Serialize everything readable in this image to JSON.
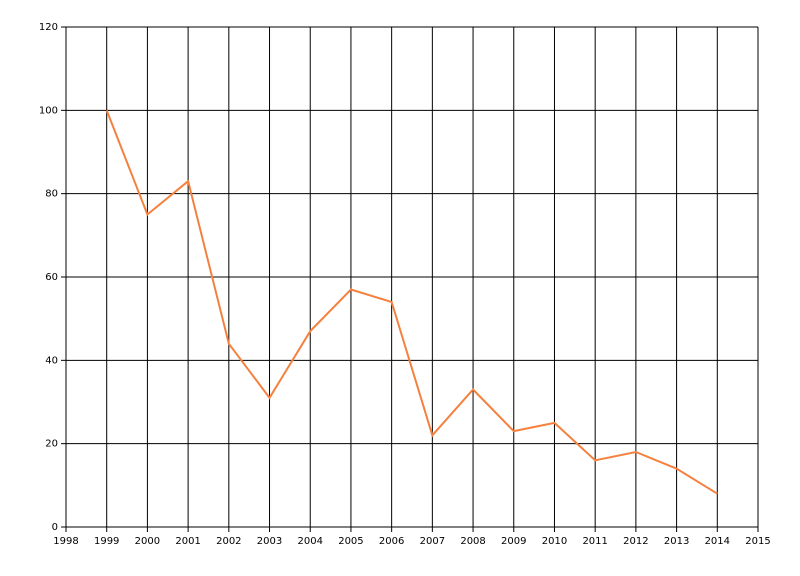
{
  "chart_data": {
    "type": "line",
    "x": [
      1999,
      2000,
      2001,
      2002,
      2003,
      2004,
      2005,
      2006,
      2007,
      2008,
      2009,
      2010,
      2011,
      2012,
      2013,
      2014
    ],
    "series": [
      {
        "color": "#f5813f",
        "values": [
          100,
          75,
          83,
          44,
          31,
          47,
          57,
          54,
          22,
          33,
          23,
          25,
          16,
          18,
          14,
          8
        ]
      }
    ],
    "xlim": [
      1998,
      2015
    ],
    "xticks": [
      1998,
      1999,
      2000,
      2001,
      2002,
      2003,
      2004,
      2005,
      2006,
      2007,
      2008,
      2009,
      2010,
      2011,
      2012,
      2013,
      2014,
      2015
    ],
    "ylim": [
      0,
      120
    ],
    "yticks": [
      0,
      20,
      40,
      60,
      80,
      100,
      120
    ],
    "grid": true
  }
}
